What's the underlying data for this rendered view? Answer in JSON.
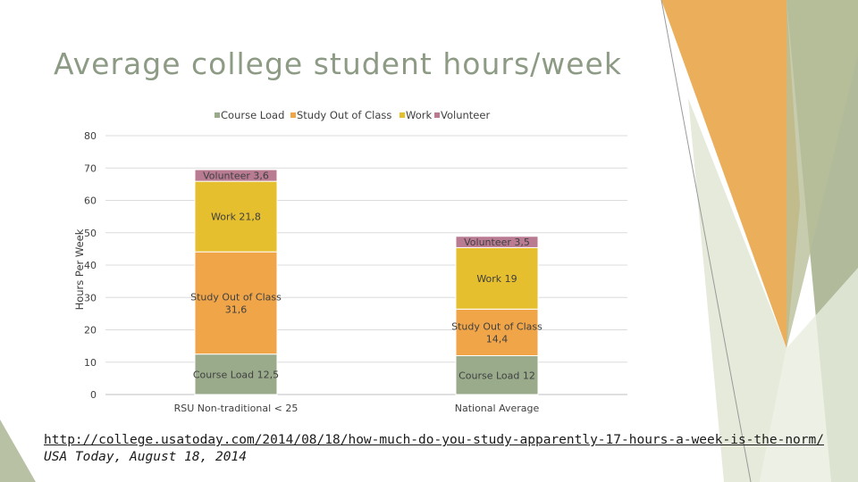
{
  "title": "Average college student hours/week",
  "colors": {
    "course_load": "#9aab8c",
    "study": "#f0a548",
    "work": "#e5bf2d",
    "volunteer": "#b87b92",
    "title": "#8d9b85",
    "deco_green": "#a8b28f",
    "deco_orange": "#e8a03e"
  },
  "chart_data": {
    "type": "bar",
    "stacked": true,
    "categories": [
      "RSU Non-traditional < 25",
      "National Average"
    ],
    "series": [
      {
        "name": "Course Load",
        "values": [
          12.5,
          12
        ],
        "labels": [
          "Course Load  12,5",
          "Course Load  12"
        ]
      },
      {
        "name": "Study Out of Class",
        "values": [
          31.6,
          14.4
        ],
        "labels": [
          "Study Out of Class\n31,6",
          "Study Out of Class\n14,4"
        ]
      },
      {
        "name": "Work",
        "values": [
          21.8,
          19
        ],
        "labels": [
          "Work  21,8",
          "Work  19"
        ]
      },
      {
        "name": "Volunteer",
        "values": [
          3.6,
          3.5
        ],
        "labels": [
          "Volunteer  3,6",
          "Volunteer  3,5"
        ]
      }
    ],
    "ylabel": "Hours Per Week",
    "xlabel": "",
    "ylim": [
      0,
      80
    ],
    "yticks": [
      0,
      10,
      20,
      30,
      40,
      50,
      60,
      70,
      80
    ],
    "grid": true,
    "legend_position": "top"
  },
  "source": {
    "url": "http://college.usatoday.com/2014/08/18/how-much-do-you-study-apparently-17-hours-a-week-is-the-norm/",
    "citation": "USA Today, August 18, 2014"
  }
}
